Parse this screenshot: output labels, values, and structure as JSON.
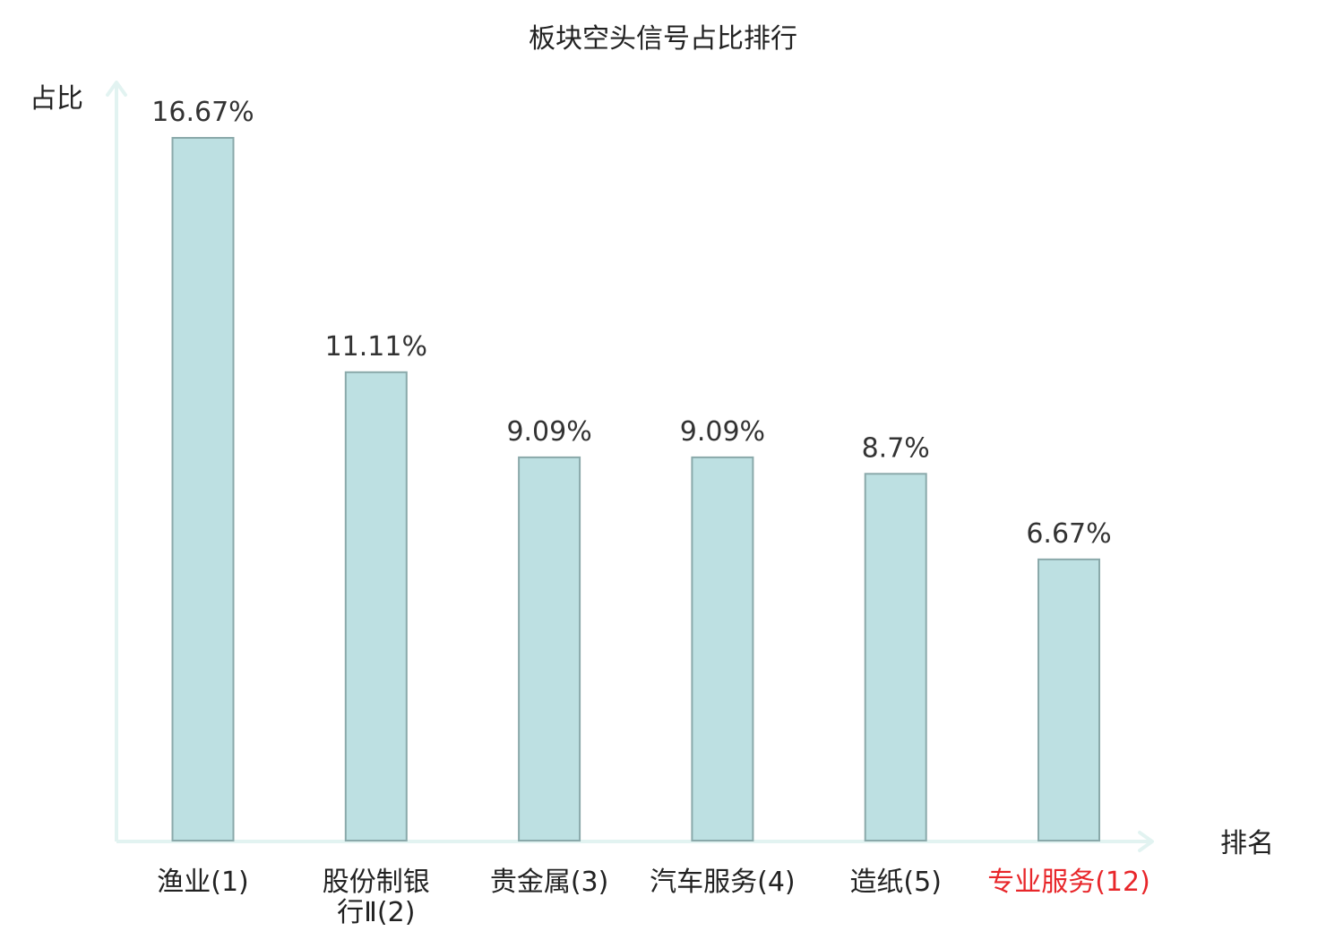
{
  "chart_data": {
    "type": "bar",
    "title": "板块空头信号占比排行",
    "ylabel": "占比",
    "xlabel": "排名",
    "categories": [
      "渔业(1)",
      "股份制银行Ⅱ(2)",
      "贵金属(3)",
      "汽车服务(4)",
      "造纸(5)",
      "专业服务(12)"
    ],
    "category_lines": [
      [
        "渔业(1)"
      ],
      [
        "股份制银",
        "行Ⅱ(2)"
      ],
      [
        "贵金属(3)"
      ],
      [
        "汽车服务(4)"
      ],
      [
        "造纸(5)"
      ],
      [
        "专业服务(12)"
      ]
    ],
    "values": [
      16.67,
      11.11,
      9.09,
      9.09,
      8.7,
      6.67
    ],
    "value_labels": [
      "16.67%",
      "11.11%",
      "9.09%",
      "9.09%",
      "8.7%",
      "6.67%"
    ],
    "highlight_index": 5,
    "ylim": [
      0,
      16.67
    ],
    "grid": false,
    "colors": {
      "bar_fill": "#bde0e2",
      "bar_stroke": "#8aa9aa",
      "axis": "#e2f3f1",
      "label_normal": "#222222",
      "label_highlight": "#e8262a"
    }
  }
}
